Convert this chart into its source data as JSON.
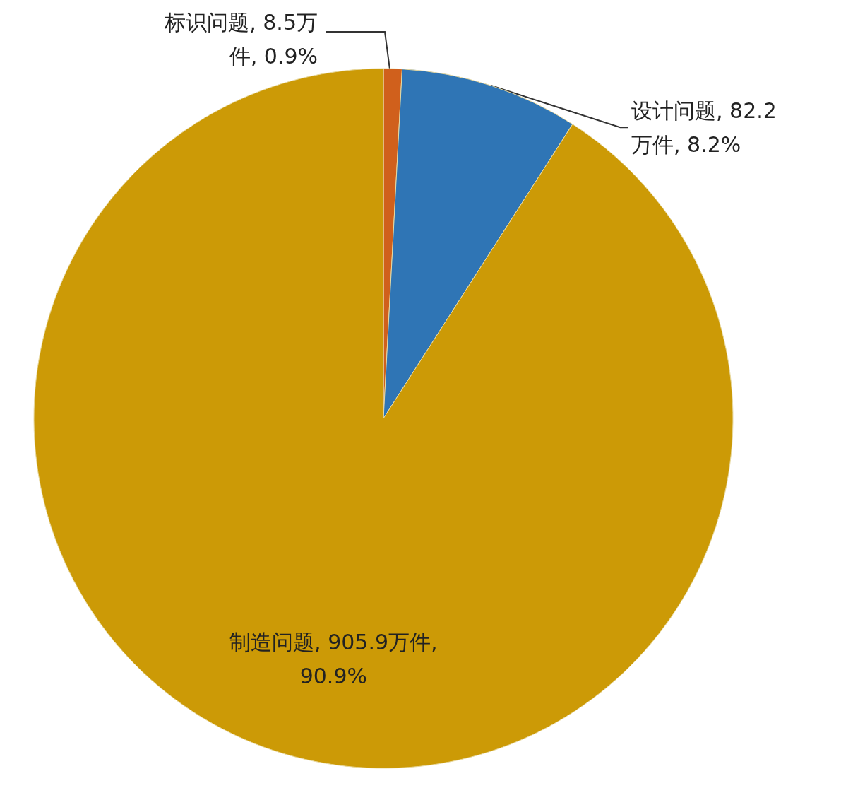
{
  "chart_data": {
    "type": "pie",
    "categories": [
      "标识问题",
      "设计问题",
      "制造问题"
    ],
    "values": [
      8.5,
      82.2,
      905.9
    ],
    "value_labels": [
      "8.5万件, 0.9%",
      "82.2万件, 8.2%",
      "905.9万件,90.9%"
    ],
    "colors": [
      "#d0601c",
      "#2f75b5",
      "#cc9a06"
    ],
    "legend": false
  }
}
